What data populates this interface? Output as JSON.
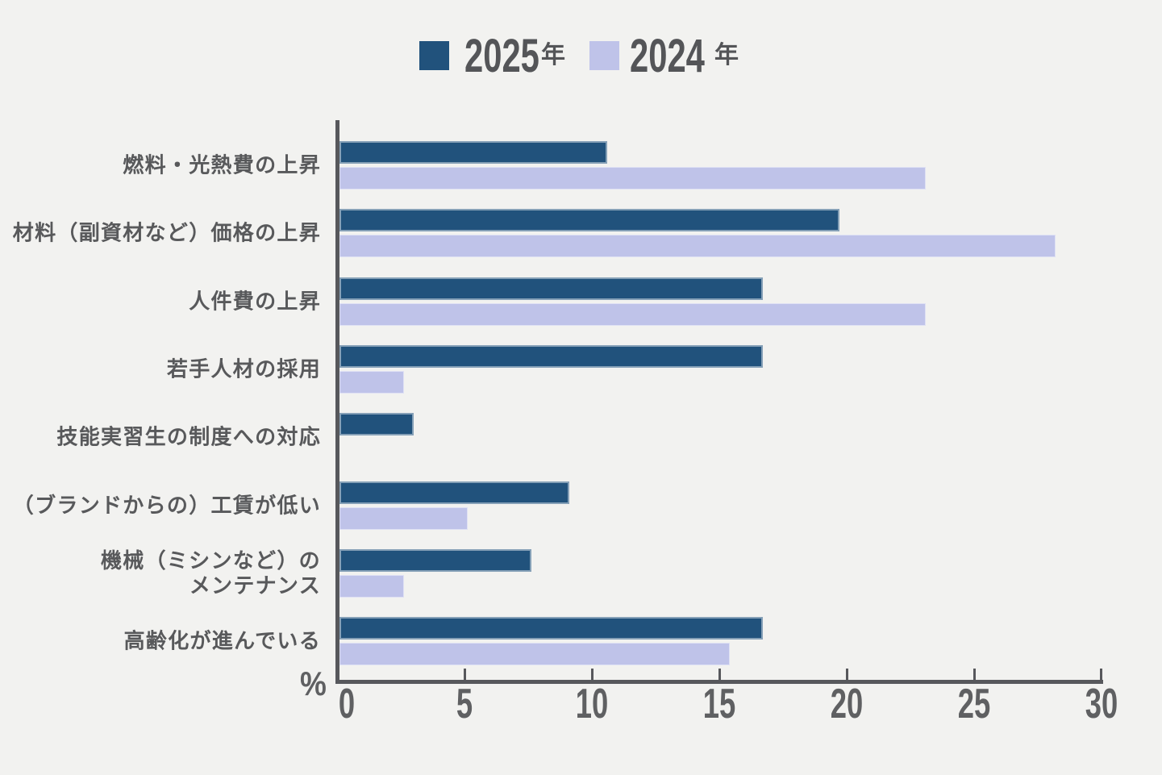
{
  "chart": {
    "legend": [
      {
        "label_year": "2025",
        "label_suffix": "年"
      },
      {
        "label_year": "2024",
        "label_suffix": "年"
      }
    ],
    "unit_label": "%"
  },
  "chart_data": {
    "type": "bar",
    "orientation": "horizontal",
    "title": "",
    "xlabel": "%",
    "ylabel": "",
    "xlim": [
      0,
      30
    ],
    "x_ticks": [
      0,
      5,
      10,
      15,
      20,
      25,
      30
    ],
    "grid": false,
    "legend_position": "top",
    "categories": [
      "燃料・光熱費の上昇",
      "材料（副資材など）価格の上昇",
      "人件費の上昇",
      "若手人材の採用",
      "技能実習生の制度への対応",
      "（ブランドからの）工賃が低い",
      "機械（ミシンなど）の\nメンテナンス",
      "高齢化が進んでいる"
    ],
    "series": [
      {
        "name": "2025年",
        "color": "#21527c",
        "values": [
          10.6,
          19.7,
          16.7,
          16.7,
          3.0,
          9.1,
          7.6,
          16.7
        ]
      },
      {
        "name": "2024年",
        "color": "#bfc3e9",
        "values": [
          23.1,
          28.2,
          23.1,
          2.6,
          0,
          5.1,
          2.6,
          15.4
        ]
      }
    ],
    "colors": {
      "background": "#f2f2f0",
      "axis": "#57585c",
      "tick_text": "#5f6062",
      "category_text": "#58595b",
      "legend_text": "#545558",
      "series_2025": "#21527c",
      "series_2024": "#bfc3e9"
    }
  }
}
